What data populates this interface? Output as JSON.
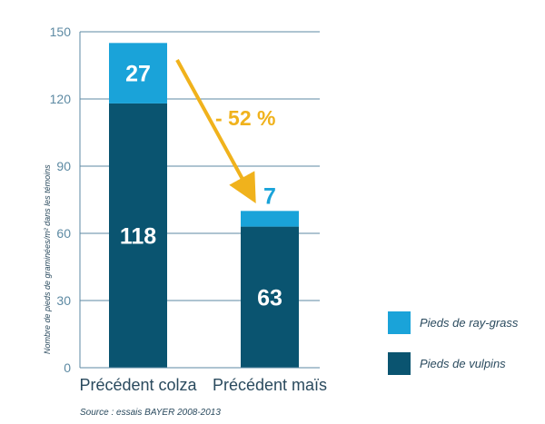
{
  "chart_data": {
    "type": "bar",
    "stacked": true,
    "categories": [
      "Précédent colza",
      "Précédent maïs"
    ],
    "series": [
      {
        "name": "Pieds de vulpins",
        "values": [
          118,
          63
        ],
        "color": "#0a5470"
      },
      {
        "name": "Pieds de ray-grass",
        "values": [
          27,
          7
        ],
        "color": "#1aa3d9"
      }
    ],
    "ylabel": "Nombre de pieds de graminées/m² dans les témoins",
    "ylim": [
      0,
      150
    ],
    "yticks": [
      0,
      30,
      60,
      90,
      120,
      150
    ],
    "grid": true,
    "legend_position": "right",
    "annotation": {
      "text": "- 52 %",
      "color": "#f0b21c"
    },
    "source": "Source : essais BAYER 2008-2013"
  }
}
